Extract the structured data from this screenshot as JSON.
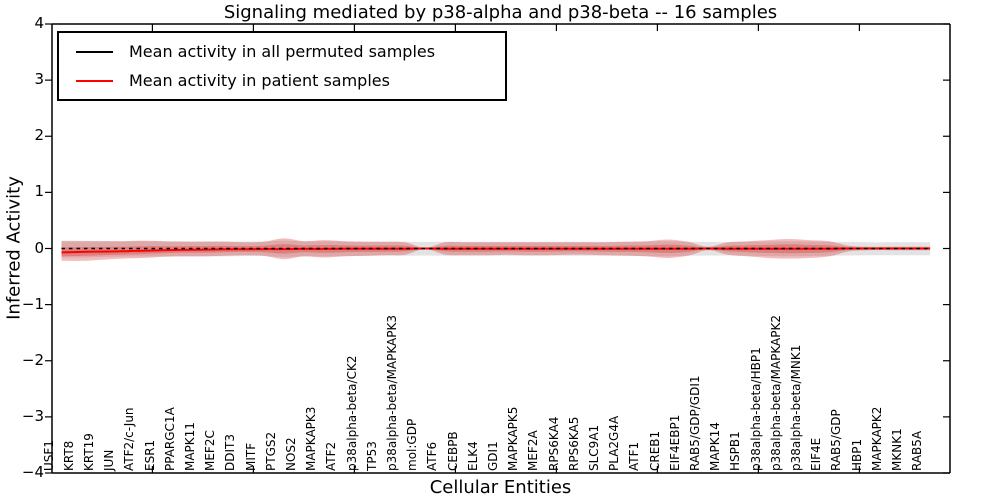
{
  "title": "Signaling mediated by p38-alpha and p38-beta -- 16 samples",
  "axes": {
    "xlabel": "Cellular Entities",
    "ylabel": "Inferred Activity",
    "ytick_labels": [
      "4",
      "3",
      "2",
      "1",
      "0",
      "−1",
      "−2",
      "−3",
      "−4"
    ],
    "ytick_values": [
      4,
      3,
      2,
      1,
      0,
      -1,
      -2,
      -3,
      -4
    ],
    "ylim": [
      -4,
      4
    ]
  },
  "legend": {
    "entries": [
      {
        "label": "Mean activity in all permuted samples",
        "color": "#000000"
      },
      {
        "label": "Mean activity in patient samples",
        "color": "#ff0000"
      }
    ]
  },
  "chart_data": {
    "type": "line",
    "title": "Signaling mediated by p38-alpha and p38-beta -- 16 samples",
    "xlabel": "Cellular Entities",
    "ylabel": "Inferred Activity",
    "ylim": [
      -4,
      4
    ],
    "grid": false,
    "legend_position": "upper left",
    "categories": [
      "USF1",
      "KRT8",
      "KRT19",
      "JUN",
      "ATF2/c-Jun",
      "ESR1",
      "PPARGC1A",
      "MAPK11",
      "MEF2C",
      "DDIT3",
      "MITF",
      "PTGS2",
      "NOS2",
      "MAPKAPK3",
      "ATF2",
      "p38alpha-beta/CK2",
      "TP53",
      "p38alpha-beta/MAPKAPK3",
      "mol:GDP",
      "ATF6",
      "CEBPB",
      "ELK4",
      "GDI1",
      "MAPKAPK5",
      "MEF2A",
      "RPS6KA4",
      "RPS6KA5",
      "SLC9A1",
      "PLA2G4A",
      "ATF1",
      "CREB1",
      "EIF4EBP1",
      "RAB5/GDP/GDI1",
      "MAPK14",
      "HSPB1",
      "p38alpha-beta/HBP1",
      "p38alpha-beta/MAPKAPK2",
      "p38alpha-beta/MNK1",
      "EIF4E",
      "RAB5/GDP",
      "HBP1",
      "MAPKAPK2",
      "MKNK1",
      "RAB5A"
    ],
    "series": [
      {
        "name": "Mean activity in all permuted samples",
        "color": "#000000",
        "line_style": "dashed",
        "values": [
          0,
          0,
          0,
          0,
          0,
          0,
          0,
          0,
          0,
          0,
          0,
          0,
          0,
          0,
          0,
          0,
          0,
          0,
          0,
          0,
          0,
          0,
          0,
          0,
          0,
          0,
          0,
          0,
          0,
          0,
          0,
          0,
          0,
          0,
          0,
          0,
          0,
          0,
          0,
          0,
          0,
          0,
          0,
          0
        ]
      },
      {
        "name": "Mean activity in patient samples",
        "color": "#ff0000",
        "line_style": "solid",
        "values": [
          -0.07,
          -0.06,
          -0.055,
          -0.05,
          -0.04,
          -0.03,
          -0.025,
          -0.02,
          -0.015,
          -0.012,
          -0.01,
          -0.01,
          -0.008,
          -0.008,
          -0.006,
          -0.005,
          -0.005,
          -0.004,
          0,
          -0.005,
          -0.005,
          -0.005,
          -0.005,
          -0.005,
          -0.005,
          -0.005,
          -0.005,
          -0.005,
          -0.005,
          -0.005,
          -0.005,
          -0.005,
          0,
          -0.005,
          -0.005,
          -0.005,
          -0.005,
          -0.005,
          -0.005,
          0,
          0,
          0,
          0,
          0
        ]
      }
    ],
    "bands": [
      {
        "name": "Permuted samples range",
        "color": "#000000",
        "opacity": 0.11,
        "upper": [
          0.14,
          0.14,
          0.135,
          0.13,
          0.13,
          0.13,
          0.13,
          0.13,
          0.13,
          0.125,
          0.125,
          0.14,
          0.13,
          0.13,
          0.125,
          0.125,
          0.12,
          0.12,
          0.115,
          0.12,
          0.12,
          0.12,
          0.12,
          0.12,
          0.12,
          0.12,
          0.12,
          0.12,
          0.12,
          0.125,
          0.13,
          0.12,
          0.115,
          0.115,
          0.12,
          0.125,
          0.13,
          0.125,
          0.12,
          0.115,
          0.11,
          0.11,
          0.11,
          0.11
        ],
        "lower": [
          -0.16,
          -0.16,
          -0.15,
          -0.145,
          -0.14,
          -0.14,
          -0.14,
          -0.14,
          -0.14,
          -0.135,
          -0.135,
          -0.15,
          -0.14,
          -0.14,
          -0.135,
          -0.135,
          -0.13,
          -0.13,
          -0.125,
          -0.13,
          -0.13,
          -0.13,
          -0.13,
          -0.13,
          -0.13,
          -0.13,
          -0.13,
          -0.13,
          -0.13,
          -0.135,
          -0.14,
          -0.13,
          -0.125,
          -0.125,
          -0.13,
          -0.135,
          -0.14,
          -0.135,
          -0.13,
          -0.125,
          -0.12,
          -0.12,
          -0.12,
          -0.12
        ]
      },
      {
        "name": "Patient samples range",
        "color": "#d52020",
        "opacity": 0.3,
        "upper": [
          0.13,
          0.13,
          0.13,
          0.13,
          0.14,
          0.13,
          0.12,
          0.12,
          0.12,
          0.11,
          0.12,
          0.18,
          0.13,
          0.15,
          0.13,
          0.12,
          0.12,
          0.11,
          0.01,
          0.11,
          0.11,
          0.11,
          0.11,
          0.11,
          0.11,
          0.11,
          0.11,
          0.11,
          0.12,
          0.13,
          0.16,
          0.12,
          0.03,
          0.11,
          0.13,
          0.15,
          0.17,
          0.15,
          0.13,
          0.05,
          0.03,
          0.03,
          0.03,
          0.03
        ],
        "lower": [
          -0.22,
          -0.22,
          -0.2,
          -0.18,
          -0.17,
          -0.15,
          -0.14,
          -0.14,
          -0.13,
          -0.12,
          -0.13,
          -0.19,
          -0.14,
          -0.16,
          -0.14,
          -0.13,
          -0.12,
          -0.11,
          -0.01,
          -0.11,
          -0.12,
          -0.12,
          -0.11,
          -0.12,
          -0.12,
          -0.11,
          -0.11,
          -0.12,
          -0.13,
          -0.14,
          -0.17,
          -0.13,
          -0.03,
          -0.11,
          -0.14,
          -0.17,
          -0.18,
          -0.17,
          -0.14,
          -0.05,
          -0.03,
          -0.03,
          -0.03,
          -0.03
        ]
      }
    ]
  }
}
